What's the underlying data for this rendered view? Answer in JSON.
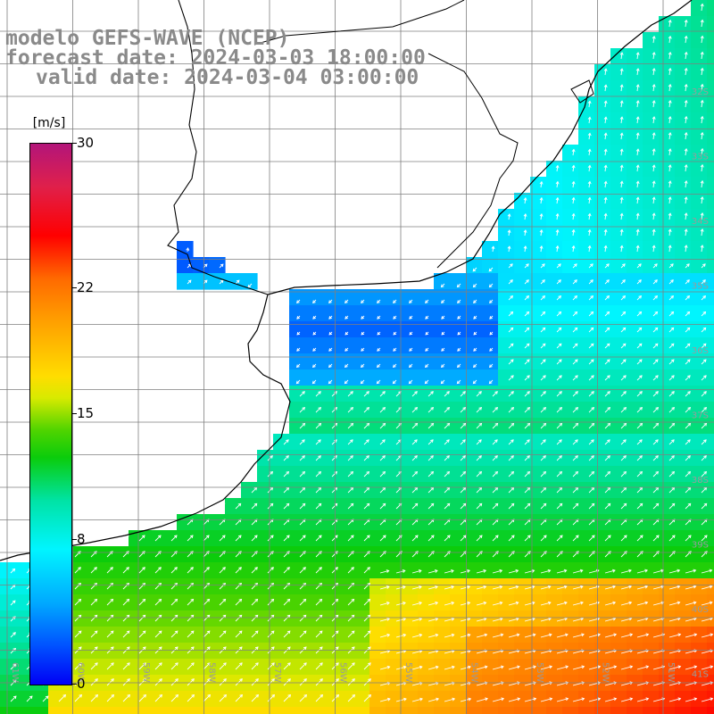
{
  "title": {
    "line1": "modelo GEFS-WAVE (NCEP)",
    "line2": "forecast date: 2024-03-03 18:00:00",
    "line3": "valid date: 2024-03-04 03:00:00"
  },
  "colorbar": {
    "unit": "[m/s]",
    "ticks": [
      {
        "value": 30,
        "label": "30"
      },
      {
        "value": 22,
        "label": "22"
      },
      {
        "value": 15,
        "label": "15"
      },
      {
        "value": 8,
        "label": "8"
      },
      {
        "value": 0,
        "label": "0"
      }
    ]
  },
  "map": {
    "variable": "wind speed",
    "lat_labels": [
      "32S",
      "33S",
      "34S",
      "35S",
      "36S",
      "37S",
      "38S",
      "39S",
      "40S",
      "41S"
    ],
    "lon_labels": [
      "61W",
      "60W",
      "59W",
      "58W",
      "57W",
      "56W",
      "55W",
      "54W",
      "53W",
      "52W",
      "51W"
    ],
    "colors": {
      "land": "#ffffff",
      "coast": "#000000",
      "grid": "#7f7f7f",
      "arrows": "#ffffff",
      "label_text": "#9a9a9a"
    }
  }
}
